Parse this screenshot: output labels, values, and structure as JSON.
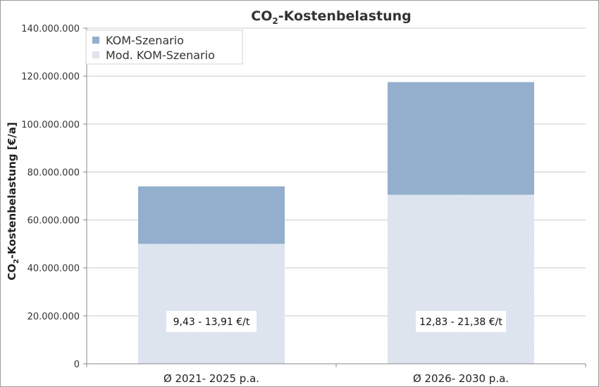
{
  "chart_data": {
    "type": "bar",
    "stacked": true,
    "title": "CO₂-Kostenbelastung",
    "title_main": "CO",
    "title_sub": "2",
    "title_rest": "-Kostenbelastung",
    "ylabel": "CO₂-Kostenbelastung [€/a]",
    "ylabel_main": "CO",
    "ylabel_sub": "2",
    "ylabel_rest": "-Kostenbelastung [€/a]",
    "xlabel": "",
    "categories": [
      "Ø 2021- 2025 p.a.",
      "Ø 2026- 2030 p.a."
    ],
    "ylim": [
      0,
      140000000
    ],
    "yticks": [
      0,
      20000000,
      40000000,
      60000000,
      80000000,
      100000000,
      120000000,
      140000000
    ],
    "ytick_labels": [
      "0",
      "20.000.000",
      "40.000.000",
      "60.000.000",
      "80.000.000",
      "100.000.000",
      "120.000.000",
      "140.000.000"
    ],
    "series": [
      {
        "name": "Mod. KOM-Szenario",
        "values": [
          50000000,
          70500000
        ],
        "color": "#dfe6f0",
        "pattern": "hatched"
      },
      {
        "name": "KOM-Szenario",
        "values": [
          24000000,
          47000000
        ],
        "color": "#93afcd"
      }
    ],
    "legend_order": [
      "KOM-Szenario",
      "Mod. KOM-Szenario"
    ],
    "legend_position": "top-left",
    "annotations": [
      "9,43 - 13,91 €/t",
      "12,83 - 21,38 €/t"
    ],
    "grid": true,
    "grid_color": "#c8c8c8"
  }
}
